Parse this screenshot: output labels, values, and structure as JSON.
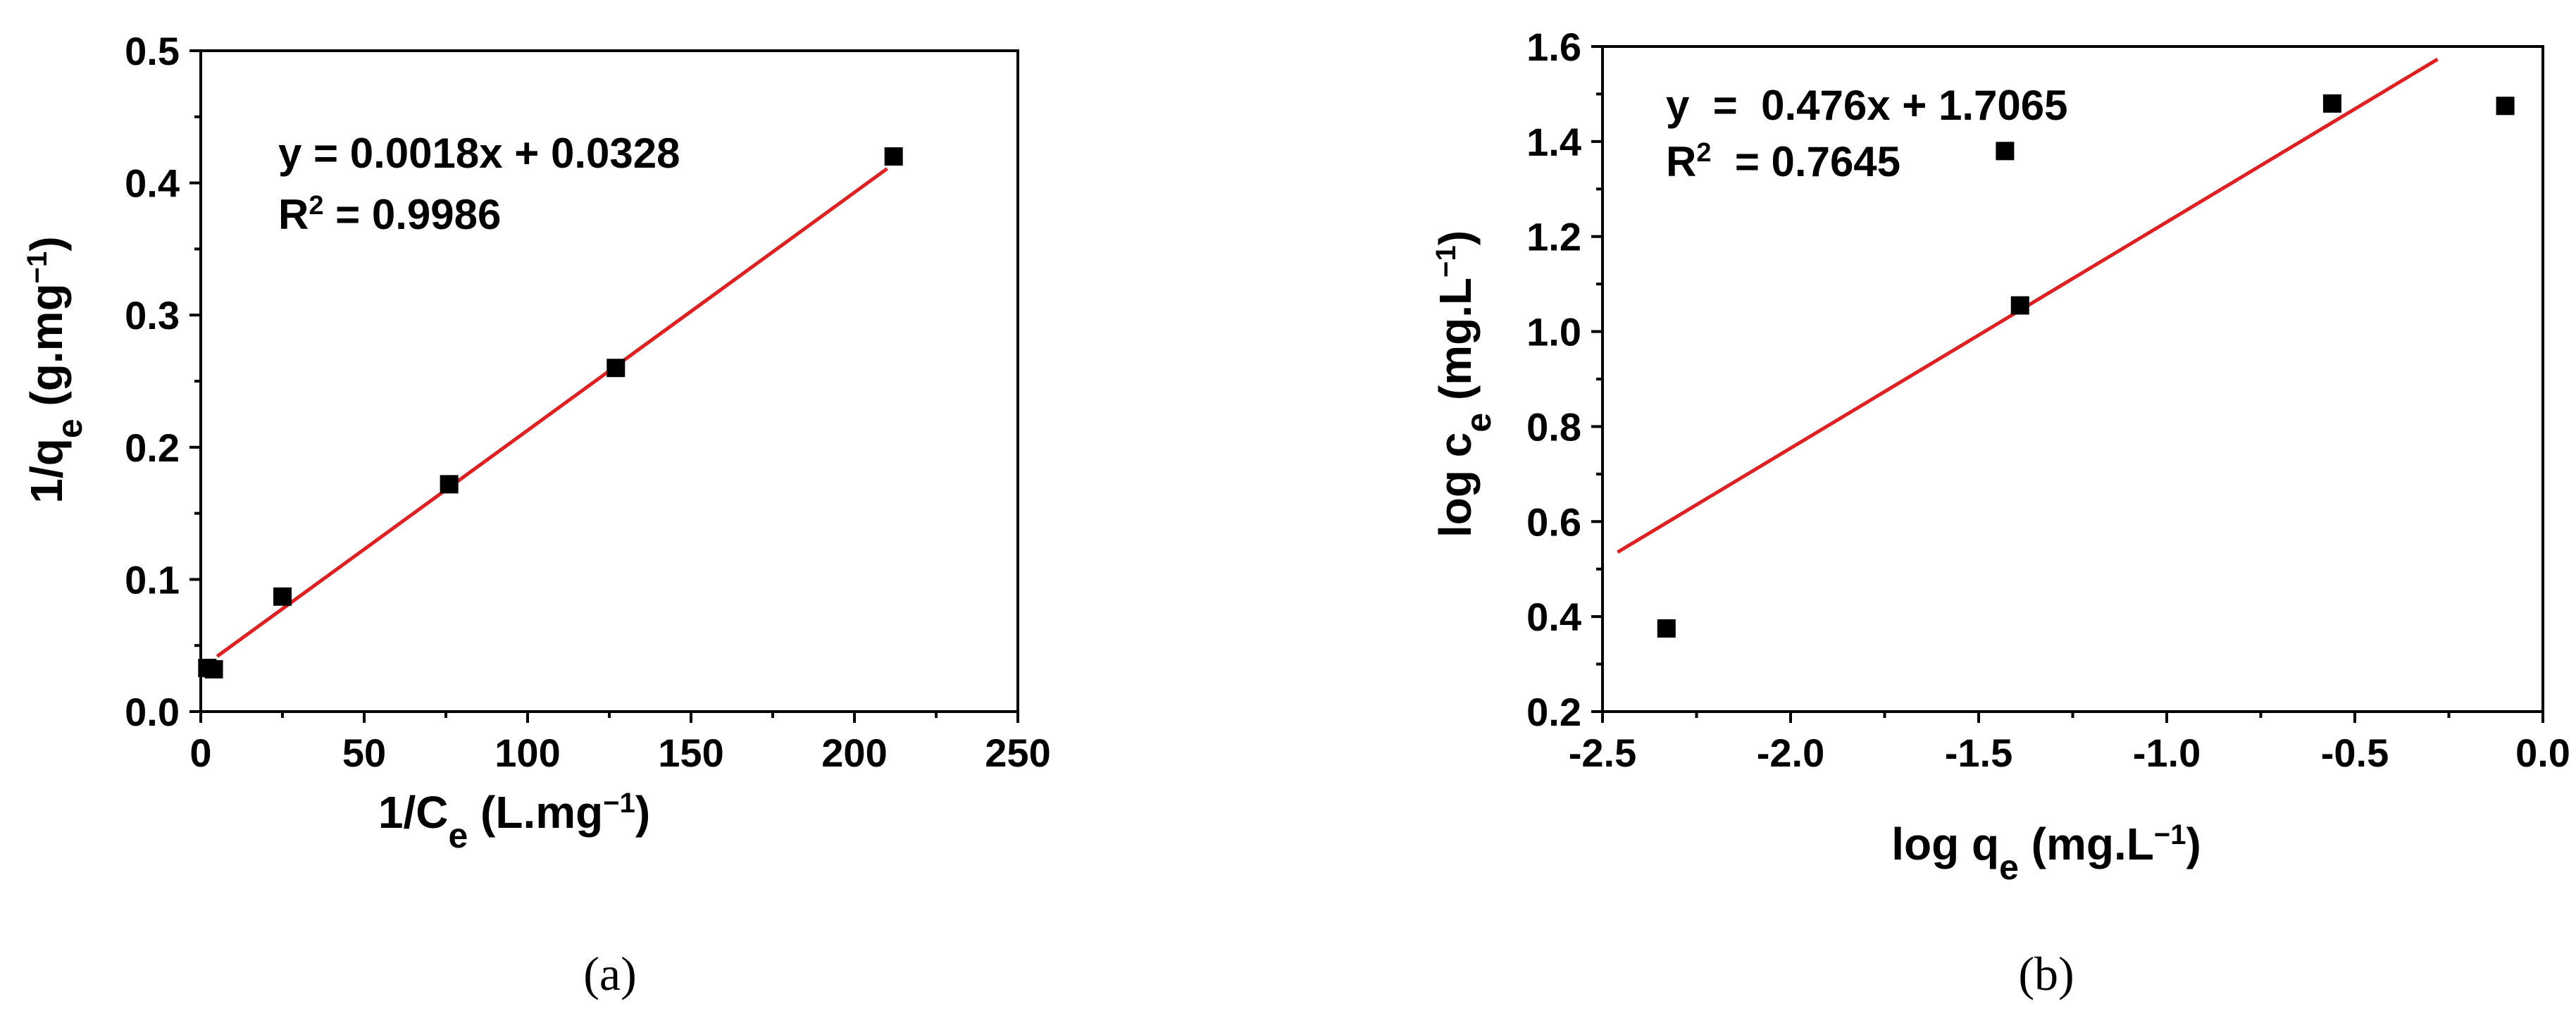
{
  "chart_data": [
    {
      "type": "scatter",
      "panel_label": "(a)",
      "xlabel_main": "1/C",
      "xlabel_sub": "e",
      "xlabel_rest": " (L.mg",
      "xlabel_sup": "−1",
      "xlabel_close": ")",
      "ylabel_main": "1/q",
      "ylabel_sub": "e",
      "ylabel_rest": " (g.mg",
      "ylabel_sup": "−1",
      "ylabel_close": ")",
      "xlim": [
        0,
        250
      ],
      "ylim": [
        0,
        0.5
      ],
      "xticks": [
        0,
        50,
        100,
        150,
        200,
        250
      ],
      "xtick_labels": [
        "0",
        "50",
        "100",
        "150",
        "200",
        "250"
      ],
      "yticks": [
        0,
        0.1,
        0.2,
        0.3,
        0.4,
        0.5
      ],
      "ytick_labels": [
        "0.0",
        "0.1",
        "0.2",
        "0.3",
        "0.4",
        "0.5"
      ],
      "series": [
        {
          "points": [
            {
              "x": 2,
              "y": 0.033
            },
            {
              "x": 4,
              "y": 0.032
            },
            {
              "x": 25,
              "y": 0.087
            },
            {
              "x": 76,
              "y": 0.172
            },
            {
              "x": 127,
              "y": 0.26
            },
            {
              "x": 212,
              "y": 0.42
            }
          ],
          "color": "#000000"
        }
      ],
      "fit": {
        "x_start": 5,
        "x_end": 210,
        "slope": 0.0018,
        "intercept": 0.0328,
        "color": "#e02020"
      },
      "equation_text": "y = 0.0018x + 0.0328",
      "r2_label": "R",
      "r2_sup": "2",
      "r2_value": " = 0.9986",
      "grid": false,
      "legend": "none"
    },
    {
      "type": "scatter",
      "panel_label": "(b)",
      "xlabel_main": "log q",
      "xlabel_sub": "e",
      "xlabel_rest": " (mg.L",
      "xlabel_sup": "−1",
      "xlabel_close": ")",
      "ylabel_main": "log c",
      "ylabel_sub": "e",
      "ylabel_rest": " (mg.L",
      "ylabel_sup": "−1",
      "ylabel_close": ")",
      "xlim": [
        -2.5,
        0.0
      ],
      "ylim": [
        0.2,
        1.6
      ],
      "xticks": [
        -2.5,
        -2.0,
        -1.5,
        -1.0,
        -0.5,
        0.0
      ],
      "xtick_labels": [
        "-2.5",
        "-2.0",
        "-1.5",
        "-1.0",
        "-0.5",
        "0.0"
      ],
      "yticks": [
        0.2,
        0.4,
        0.6,
        0.8,
        1.0,
        1.2,
        1.4,
        1.6
      ],
      "ytick_labels": [
        "0.2",
        "0.4",
        "0.6",
        "0.8",
        "1.0",
        "1.2",
        "1.4",
        "1.6"
      ],
      "series": [
        {
          "points": [
            {
              "x": -2.33,
              "y": 0.375
            },
            {
              "x": -1.43,
              "y": 1.38
            },
            {
              "x": -1.39,
              "y": 1.055
            },
            {
              "x": -0.56,
              "y": 1.48
            },
            {
              "x": -0.1,
              "y": 1.475
            }
          ],
          "color": "#000000"
        }
      ],
      "fit": {
        "x_start": -2.46,
        "x_end": -0.28,
        "slope": 0.476,
        "intercept": 1.7065,
        "color": "#e02020"
      },
      "equation_text": "y  =  0.476x + 1.7065",
      "r2_label": "R",
      "r2_sup": "2",
      "r2_value": "  = 0.7645",
      "grid": false,
      "legend": "none"
    }
  ]
}
